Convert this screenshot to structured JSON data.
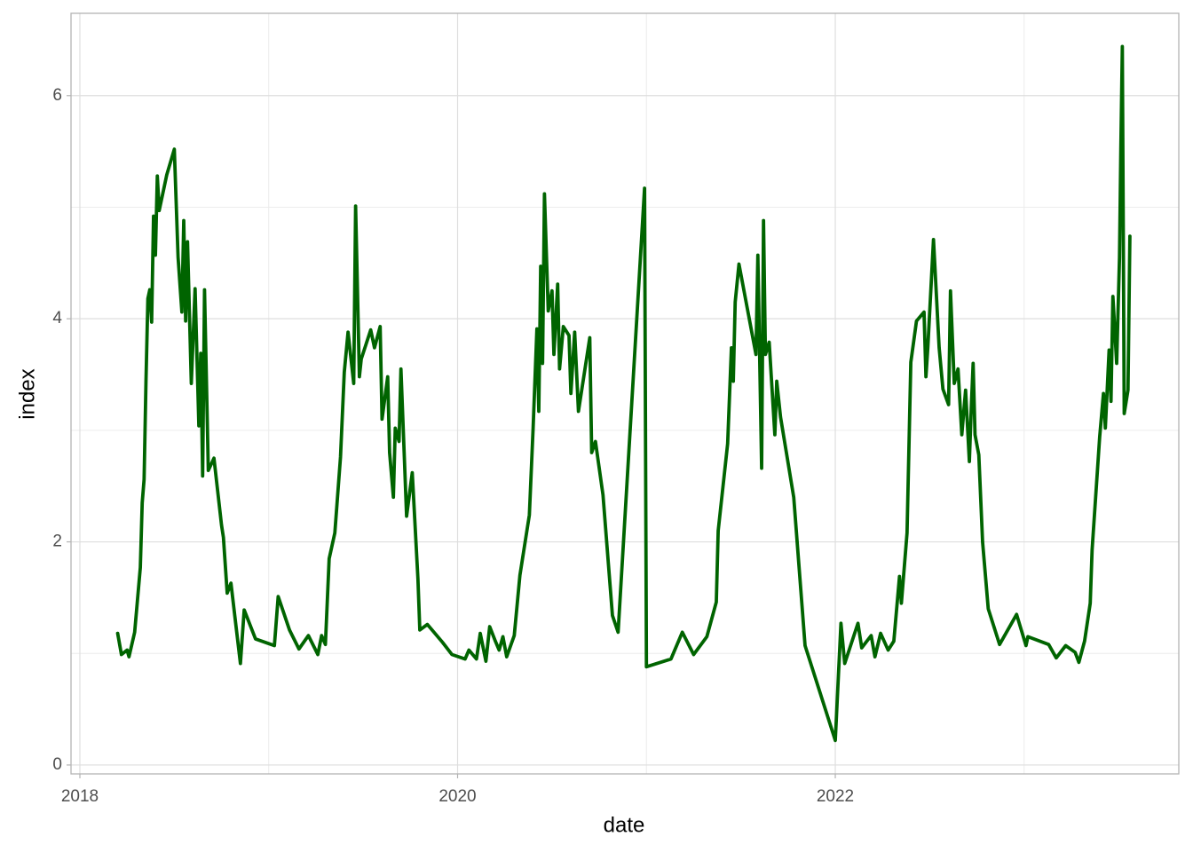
{
  "chart_data": {
    "type": "line",
    "xlabel": "date",
    "ylabel": "index",
    "color": "#006400",
    "xlim": [
      2017.953,
      2023.819
    ],
    "ylim": [
      -0.08,
      6.738
    ],
    "xticks": [
      2018,
      2020,
      2022
    ],
    "yticks": [
      0,
      2,
      4,
      6
    ],
    "minor_xticks": [
      2019,
      2021,
      2023
    ],
    "minor_yticks": [
      1,
      3,
      5
    ],
    "grid": true,
    "x": [
      2018.2,
      2018.22,
      2018.25,
      2018.26,
      2018.29,
      2018.32,
      2018.33,
      2018.34,
      2018.35,
      2018.36,
      2018.37,
      2018.38,
      2018.39,
      2018.4,
      2018.41,
      2018.42,
      2018.46,
      2018.5,
      2018.52,
      2018.54,
      2018.55,
      2018.56,
      2018.57,
      2018.59,
      2018.61,
      2018.63,
      2018.64,
      2018.65,
      2018.66,
      2018.68,
      2018.71,
      2018.75,
      2018.76,
      2018.78,
      2018.8,
      2018.82,
      2018.85,
      2018.87,
      2018.93,
      2019.03,
      2019.05,
      2019.11,
      2019.16,
      2019.21,
      2019.26,
      2019.28,
      2019.3,
      2019.32,
      2019.35,
      2019.38,
      2019.4,
      2019.42,
      2019.45,
      2019.46,
      2019.48,
      2019.49,
      2019.54,
      2019.56,
      2019.59,
      2019.6,
      2019.63,
      2019.64,
      2019.66,
      2019.67,
      2019.69,
      2019.7,
      2019.73,
      2019.76,
      2019.79,
      2019.8,
      2019.84,
      2019.92,
      2019.97,
      2020.04,
      2020.06,
      2020.1,
      2020.12,
      2020.15,
      2020.17,
      2020.2,
      2020.22,
      2020.24,
      2020.26,
      2020.3,
      2020.33,
      2020.38,
      2020.4,
      2020.42,
      2020.43,
      2020.44,
      2020.45,
      2020.46,
      2020.48,
      2020.5,
      2020.51,
      2020.53,
      2020.54,
      2020.56,
      2020.59,
      2020.6,
      2020.62,
      2020.64,
      2020.7,
      2020.71,
      2020.73,
      2020.77,
      2020.82,
      2020.85,
      2020.99,
      2021.0,
      2021.13,
      2021.19,
      2021.25,
      2021.32,
      2021.37,
      2021.38,
      2021.43,
      2021.45,
      2021.46,
      2021.47,
      2021.49,
      2021.58,
      2021.59,
      2021.61,
      2021.62,
      2021.63,
      2021.65,
      2021.68,
      2021.69,
      2021.71,
      2021.78,
      2021.84,
      2022.0,
      2022.03,
      2022.05,
      2022.12,
      2022.14,
      2022.19,
      2022.21,
      2022.24,
      2022.28,
      2022.31,
      2022.34,
      2022.35,
      2022.38,
      2022.4,
      2022.43,
      2022.47,
      2022.48,
      2022.49,
      2022.52,
      2022.55,
      2022.57,
      2022.6,
      2022.61,
      2022.63,
      2022.65,
      2022.67,
      2022.69,
      2022.71,
      2022.72,
      2022.73,
      2022.74,
      2022.76,
      2022.78,
      2022.81,
      2022.87,
      2022.96,
      2023.01,
      2023.02,
      2023.13,
      2023.17,
      2023.22,
      2023.27,
      2023.29,
      2023.32,
      2023.35,
      2023.36,
      2023.4,
      2023.42,
      2023.43,
      2023.45,
      2023.46,
      2023.47,
      2023.49,
      2023.505,
      2023.512,
      2023.52,
      2023.53,
      2023.55,
      2023.56
    ],
    "values": [
      1.18,
      0.99,
      1.03,
      0.97,
      1.19,
      1.77,
      2.35,
      2.56,
      3.44,
      4.18,
      4.26,
      3.97,
      4.92,
      4.57,
      5.28,
      4.97,
      5.29,
      5.52,
      4.55,
      4.06,
      4.88,
      3.98,
      4.69,
      3.42,
      4.27,
      3.04,
      3.69,
      2.59,
      4.26,
      2.64,
      2.75,
      2.15,
      2.04,
      1.54,
      1.63,
      1.34,
      0.91,
      1.39,
      1.13,
      1.07,
      1.51,
      1.21,
      1.04,
      1.16,
      0.99,
      1.16,
      1.08,
      1.85,
      2.08,
      2.76,
      3.52,
      3.88,
      3.42,
      5.01,
      3.48,
      3.64,
      3.9,
      3.74,
      3.93,
      3.1,
      3.48,
      2.8,
      2.4,
      3.02,
      2.9,
      3.55,
      2.23,
      2.62,
      1.67,
      1.21,
      1.26,
      1.1,
      0.99,
      0.95,
      1.03,
      0.95,
      1.18,
      0.93,
      1.24,
      1.11,
      1.03,
      1.15,
      0.97,
      1.16,
      1.7,
      2.24,
      3.02,
      3.91,
      3.17,
      4.47,
      3.6,
      5.12,
      4.07,
      4.25,
      3.68,
      4.31,
      3.55,
      3.93,
      3.85,
      3.33,
      3.88,
      3.17,
      3.83,
      2.8,
      2.9,
      2.42,
      1.34,
      1.19,
      5.17,
      0.88,
      0.95,
      1.19,
      0.99,
      1.15,
      1.46,
      2.1,
      2.88,
      3.74,
      3.44,
      4.15,
      4.49,
      3.68,
      4.57,
      2.66,
      4.88,
      3.68,
      3.79,
      2.96,
      3.44,
      3.12,
      2.4,
      1.07,
      0.22,
      1.27,
      0.91,
      1.27,
      1.05,
      1.16,
      0.97,
      1.18,
      1.03,
      1.11,
      1.69,
      1.45,
      2.08,
      3.61,
      3.98,
      4.06,
      3.48,
      3.74,
      4.71,
      3.74,
      3.37,
      3.23,
      4.25,
      3.42,
      3.55,
      2.96,
      3.36,
      2.72,
      3.2,
      3.6,
      2.96,
      2.78,
      2.0,
      1.4,
      1.08,
      1.35,
      1.07,
      1.15,
      1.08,
      0.96,
      1.07,
      1.01,
      0.92,
      1.11,
      1.45,
      1.93,
      2.94,
      3.33,
      3.02,
      3.72,
      3.26,
      4.2,
      3.6,
      4.55,
      5.52,
      6.44,
      3.15,
      3.36,
      4.74
    ]
  }
}
